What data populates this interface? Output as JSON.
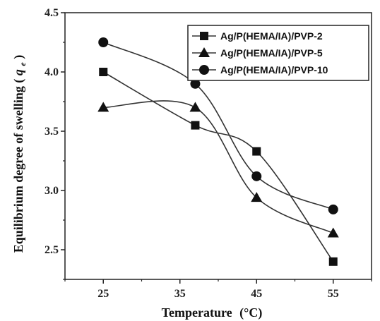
{
  "chart_data": {
    "type": "line",
    "title": "",
    "xlabel": "Temperature",
    "xlabel_unit": "(°C)",
    "ylabel": "Equilibrium degree of swelling",
    "ylabel_symbol": "q",
    "ylabel_subscript": "e",
    "ylabel_paren_open": "(",
    "ylabel_paren_close": ")",
    "x": [
      25,
      37,
      45,
      55
    ],
    "xticks": [
      25,
      35,
      45,
      55
    ],
    "xtick_labels": [
      "25",
      "35",
      "45",
      "55"
    ],
    "yticks": [
      2.5,
      3.0,
      3.5,
      4.0,
      4.5
    ],
    "ytick_labels": [
      "2.5",
      "3.0",
      "3.5",
      "4.0",
      "4.5"
    ],
    "xlim": [
      20,
      60
    ],
    "ylim": [
      2.25,
      4.5
    ],
    "legend_position": "top-right",
    "grid": false,
    "series": [
      {
        "name": "Ag/P(HEMA/IA)/PVP-2",
        "marker": "square",
        "values": [
          4.0,
          3.55,
          3.33,
          2.4
        ]
      },
      {
        "name": "Ag/P(HEMA/IA)/PVP-5",
        "marker": "triangle",
        "values": [
          3.7,
          3.7,
          2.94,
          2.64
        ]
      },
      {
        "name": "Ag/P(HEMA/IA)/PVP-10",
        "marker": "circle",
        "values": [
          4.25,
          3.9,
          3.12,
          2.84
        ]
      }
    ],
    "colors": {
      "line": "#333333",
      "marker": "#111111",
      "axis": "#222222"
    }
  }
}
